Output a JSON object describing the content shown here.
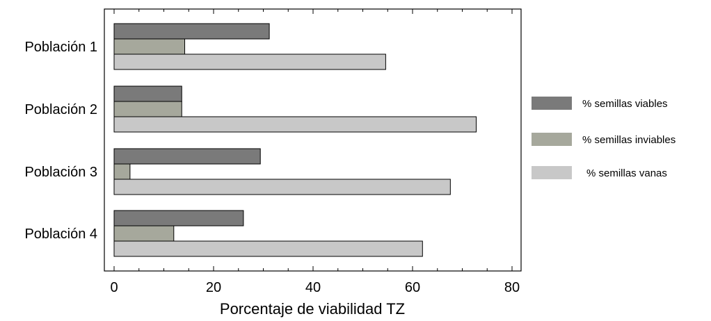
{
  "chart_data": {
    "type": "bar",
    "orientation": "horizontal",
    "categories": [
      "Población 1",
      "Población 2",
      "Población 3",
      "Población 4"
    ],
    "series": [
      {
        "name": "% semillas viables",
        "values": [
          31.2,
          13.6,
          29.4,
          26.0
        ],
        "color": "#7a7a7a"
      },
      {
        "name": "% semillas inviables",
        "values": [
          14.2,
          13.6,
          3.2,
          12.0
        ],
        "color": "#a6a89c"
      },
      {
        "name": "% semillas vanas",
        "values": [
          54.6,
          72.8,
          67.6,
          62.0
        ],
        "color": "#c8c8c8"
      }
    ],
    "xlabel": "Porcentaje de viabilidad TZ",
    "ylabel": "",
    "xlim": [
      0,
      80
    ],
    "xticks": [
      "0",
      "20",
      "40",
      "60",
      "80"
    ],
    "grid": false,
    "legend_position": "right"
  }
}
